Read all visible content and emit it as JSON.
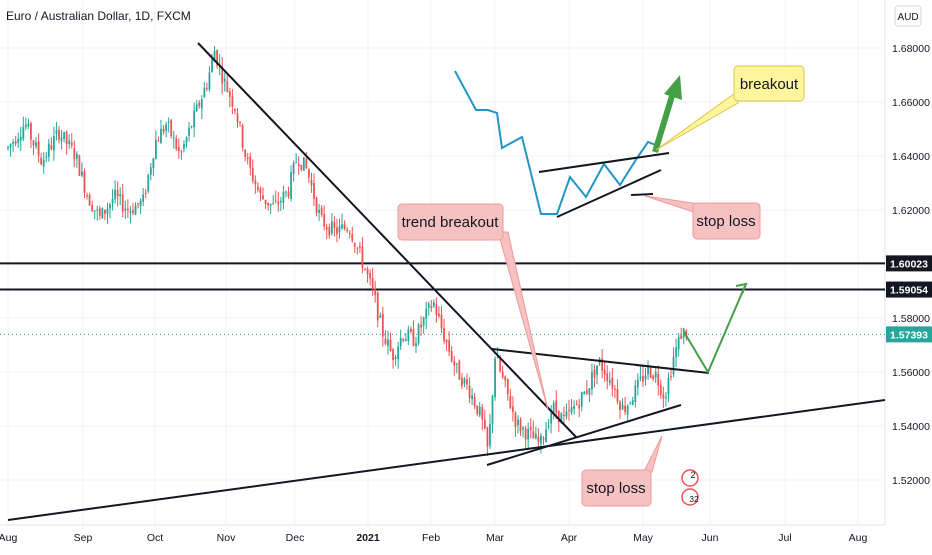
{
  "header": {
    "title": "Euro / Australian Dollar, 1D, FXCM",
    "currency_button": "AUD"
  },
  "colors": {
    "up": "#26a69a",
    "down": "#ef5350",
    "price_line": "#26a69a",
    "sketch_line": "#2196c7",
    "arrow_green": "#43a047",
    "note_pink": "#f6c1c1",
    "note_yellow": "#fff59d",
    "grid": "#f0f3fa",
    "level_label_bg": "#131722"
  },
  "chart_data": {
    "type": "candlestick",
    "symbol": "Euro / Australian Dollar",
    "interval": "1D",
    "source": "FXCM",
    "y_range": [
      1.502,
      1.695
    ],
    "y_ticks": [
      "1.68000",
      "1.66000",
      "1.64000",
      "1.62000",
      "1.58000",
      "1.56000",
      "1.54000",
      "1.52000"
    ],
    "x_ticks": [
      "Aug",
      "Sep",
      "Oct",
      "Nov",
      "Dec",
      "2021",
      "Feb",
      "Mar",
      "Apr",
      "May",
      "Jun",
      "Jul",
      "Aug"
    ],
    "last_price": {
      "value": 1.57393,
      "label": "1.57393"
    },
    "horizontal_levels": [
      {
        "value": 1.60023,
        "label": "1.60023"
      },
      {
        "value": 1.59054,
        "label": "1.59054"
      }
    ],
    "price_path": [
      [
        "2020-08-01",
        1.643
      ],
      [
        "2020-08-08",
        1.652
      ],
      [
        "2020-08-15",
        1.638
      ],
      [
        "2020-08-22",
        1.649
      ],
      [
        "2020-08-29",
        1.64
      ],
      [
        "2020-09-03",
        1.625
      ],
      [
        "2020-09-08",
        1.617
      ],
      [
        "2020-09-14",
        1.625
      ],
      [
        "2020-09-20",
        1.62
      ],
      [
        "2020-09-26",
        1.623
      ],
      [
        "2020-10-01",
        1.645
      ],
      [
        "2020-10-06",
        1.652
      ],
      [
        "2020-10-12",
        1.64
      ],
      [
        "2020-10-18",
        1.654
      ],
      [
        "2020-10-24",
        1.668
      ],
      [
        "2020-10-27",
        1.679
      ],
      [
        "2020-10-31",
        1.668
      ],
      [
        "2020-11-05",
        1.658
      ],
      [
        "2020-11-10",
        1.638
      ],
      [
        "2020-11-16",
        1.625
      ],
      [
        "2020-11-22",
        1.621
      ],
      [
        "2020-11-28",
        1.627
      ],
      [
        "2020-12-02",
        1.64
      ],
      [
        "2020-12-06",
        1.635
      ],
      [
        "2020-12-12",
        1.616
      ],
      [
        "2020-12-18",
        1.612
      ],
      [
        "2020-12-24",
        1.614
      ],
      [
        "2020-12-30",
        1.6
      ],
      [
        "2021-01-04",
        1.588
      ],
      [
        "2021-01-08",
        1.575
      ],
      [
        "2021-01-13",
        1.566
      ],
      [
        "2021-01-18",
        1.574
      ],
      [
        "2021-01-24",
        1.572
      ],
      [
        "2021-01-29",
        1.58
      ],
      [
        "2021-02-02",
        1.586
      ],
      [
        "2021-02-06",
        1.575
      ],
      [
        "2021-02-12",
        1.561
      ],
      [
        "2021-02-18",
        1.553
      ],
      [
        "2021-02-23",
        1.543
      ],
      [
        "2021-02-26",
        1.53
      ],
      [
        "2021-03-01",
        1.566
      ],
      [
        "2021-03-05",
        1.555
      ],
      [
        "2021-03-10",
        1.541
      ],
      [
        "2021-03-15",
        1.537
      ],
      [
        "2021-03-20",
        1.533
      ],
      [
        "2021-03-25",
        1.547
      ],
      [
        "2021-03-30",
        1.542
      ],
      [
        "2021-04-04",
        1.548
      ],
      [
        "2021-04-08",
        1.553
      ],
      [
        "2021-04-13",
        1.564
      ],
      [
        "2021-04-18",
        1.557
      ],
      [
        "2021-04-23",
        1.546
      ],
      [
        "2021-04-28",
        1.553
      ],
      [
        "2021-05-03",
        1.561
      ],
      [
        "2021-05-07",
        1.559
      ],
      [
        "2021-05-11",
        1.551
      ],
      [
        "2021-05-15",
        1.565
      ],
      [
        "2021-05-19",
        1.575
      ],
      [
        "2021-05-22",
        1.574
      ]
    ],
    "annotations": [
      {
        "type": "text",
        "text": "trend breakout"
      },
      {
        "type": "text",
        "text": "stop loss"
      },
      {
        "type": "text",
        "text": "breakout"
      },
      {
        "type": "text",
        "text": "stop loss"
      }
    ]
  },
  "notes": {
    "trend_breakout": "trend breakout",
    "stop_loss_sketch": "stop loss",
    "breakout": "breakout",
    "stop_loss_main": "stop loss"
  },
  "badge": {
    "count": "2",
    "count2": "32"
  }
}
